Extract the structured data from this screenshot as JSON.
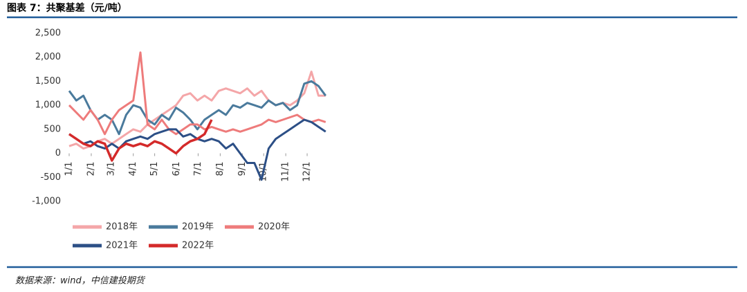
{
  "chart_data": {
    "type": "line",
    "title": "图表 7：共聚基差（元/吨）",
    "source": "数据来源：wind，中信建投期货",
    "x": [
      0,
      10,
      20,
      30,
      40,
      50,
      60,
      70,
      80,
      90,
      100,
      110,
      120,
      130,
      140,
      150,
      160,
      170,
      180,
      190,
      200,
      210,
      220,
      230,
      240,
      250,
      260,
      270,
      280,
      290,
      300,
      310,
      320,
      330,
      340,
      350,
      360
    ],
    "xlim": [
      0,
      365
    ],
    "xticks": [
      {
        "value": 0,
        "label": "1/1"
      },
      {
        "value": 31,
        "label": "2/1"
      },
      {
        "value": 59,
        "label": "3/1"
      },
      {
        "value": 90,
        "label": "4/1"
      },
      {
        "value": 120,
        "label": "5/1"
      },
      {
        "value": 151,
        "label": "6/1"
      },
      {
        "value": 181,
        "label": "7/1"
      },
      {
        "value": 212,
        "label": "8/1"
      },
      {
        "value": 243,
        "label": "9/1"
      },
      {
        "value": 273,
        "label": "10/1"
      },
      {
        "value": 304,
        "label": "11/1"
      },
      {
        "value": 334,
        "label": "12/1"
      }
    ],
    "ylim": [
      -1000,
      2500
    ],
    "yticks": [
      {
        "value": 2500,
        "label": "2,500"
      },
      {
        "value": 2000,
        "label": "2,000"
      },
      {
        "value": 1500,
        "label": "1,500"
      },
      {
        "value": 1000,
        "label": "1,000"
      },
      500,
      0,
      -500,
      {
        "value": -1000,
        "label": "-1,000"
      }
    ],
    "series": [
      {
        "name": "2018年",
        "color": "#f4a6a8",
        "values": [
          150,
          200,
          100,
          150,
          250,
          300,
          200,
          300,
          400,
          500,
          450,
          600,
          700,
          800,
          900,
          1000,
          1200,
          1250,
          1100,
          1200,
          1100,
          1300,
          1350,
          1300,
          1250,
          1350,
          1200,
          1300,
          1100,
          1000,
          1050,
          1000,
          1100,
          1250,
          1700,
          1200,
          1200
        ]
      },
      {
        "name": "2019年",
        "color": "#4a7a9c",
        "values": [
          1300,
          1100,
          1200,
          900,
          700,
          800,
          700,
          400,
          800,
          1000,
          950,
          700,
          600,
          800,
          700,
          950,
          850,
          700,
          500,
          700,
          800,
          900,
          800,
          1000,
          950,
          1050,
          1000,
          950,
          1100,
          1000,
          1050,
          900,
          1000,
          1450,
          1500,
          1400,
          1200
        ]
      },
      {
        "name": "2020年",
        "color": "#ee7b7b",
        "values": [
          1000,
          850,
          700,
          900,
          700,
          400,
          700,
          900,
          1000,
          1100,
          2100,
          600,
          500,
          700,
          500,
          400,
          500,
          600,
          600,
          500,
          550,
          500,
          450,
          500,
          450,
          500,
          550,
          600,
          700,
          650,
          700,
          750,
          800,
          700,
          650,
          700,
          650
        ]
      },
      {
        "name": "2021年",
        "color": "#2c4f86",
        "values": [
          400,
          300,
          200,
          250,
          150,
          100,
          200,
          100,
          250,
          300,
          350,
          300,
          400,
          450,
          500,
          500,
          350,
          400,
          300,
          250,
          300,
          250,
          100,
          200,
          0,
          -200,
          -200,
          -550,
          100,
          300,
          400,
          500,
          600,
          700,
          650,
          550,
          450
        ]
      },
      {
        "name": "2022年",
        "color": "#d42a2a",
        "values": [
          400,
          300,
          200,
          150,
          250,
          200,
          -150,
          100,
          200,
          150,
          200,
          150,
          250,
          200,
          100,
          0,
          150,
          250,
          300,
          400,
          700,
          null,
          null,
          null,
          null,
          null,
          null,
          null,
          null,
          null,
          null,
          null,
          null,
          null,
          null,
          null,
          null
        ]
      }
    ]
  }
}
